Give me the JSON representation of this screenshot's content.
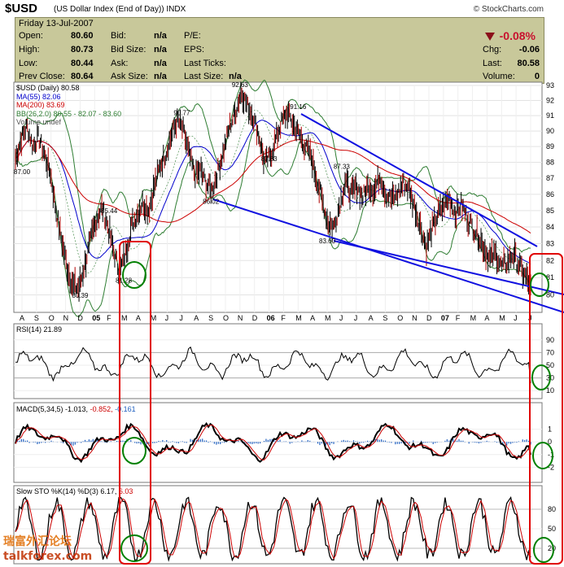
{
  "header": {
    "symbol": "$USD",
    "description": "(US Dollar Index (End of Day))",
    "exchange": "INDX",
    "brand": "© StockCharts.com"
  },
  "quote": {
    "date": "Friday  13-Jul-2007",
    "open_label": "Open:",
    "open": "80.60",
    "high_label": "High:",
    "high": "80.73",
    "low_label": "Low:",
    "low": "80.44",
    "prev_label": "Prev Close:",
    "prev": "80.64",
    "bid_label": "Bid:",
    "bid": "n/a",
    "bidsize_label": "Bid Size:",
    "bidsize": "n/a",
    "ask_label": "Ask:",
    "ask": "n/a",
    "asksize_label": "Ask Size:",
    "asksize": "n/a",
    "pe_label": "P/E:",
    "eps_label": "EPS:",
    "lastticks_label": "Last Ticks:",
    "lastsize_label": "Last Size:",
    "lastsize": "n/a",
    "change_pct": "-0.08%",
    "chg_label": "Chg:",
    "chg": "-0.06",
    "last_label": "Last:",
    "last": "80.58",
    "volume_label": "Volume:",
    "volume": "0"
  },
  "colors": {
    "panel_bg": "#ffffff",
    "quote_bg": "#c8c89a",
    "price": "#000000",
    "ma55": "#0000cc",
    "ma200": "#cc0000",
    "bb": "#2e7d32",
    "trendline": "#1010e0",
    "rsi_fill": "#8b5a5a",
    "macd_hist": "#2060c0",
    "macd_line": "#000000",
    "signal_line": "#cc0000",
    "highlight_rect": "#e00000",
    "highlight_circle": "#008000"
  },
  "chart_data": [
    {
      "type": "line",
      "title": "$USD (Daily) 80.58",
      "legend": [
        {
          "name": "MA(55) 82.06",
          "color": "#0000cc"
        },
        {
          "name": "MA(200) 83.69",
          "color": "#cc0000"
        },
        {
          "name": "BB(26,2.0) 80.55 - 82.07 - 83.60",
          "color": "#2e7d32"
        },
        {
          "name": "Volume undef",
          "color": "#666666"
        }
      ],
      "legend_position": "top-left",
      "x_ticks": [
        "A",
        "S",
        "O",
        "N",
        "D",
        "05",
        "F",
        "M",
        "A",
        "M",
        "J",
        "J",
        "A",
        "S",
        "O",
        "N",
        "D",
        "06",
        "F",
        "M",
        "A",
        "M",
        "J",
        "J",
        "A",
        "S",
        "O",
        "N",
        "D",
        "07",
        "F",
        "M",
        "A",
        "M",
        "J",
        "J"
      ],
      "ylim": [
        79,
        93
      ],
      "y_ticks": [
        80,
        81,
        82,
        83,
        84,
        85,
        86,
        87,
        88,
        89,
        90,
        91,
        92,
        93
      ],
      "scale": "log",
      "annotations": [
        {
          "label": "87.00",
          "x": "Aug-04",
          "y": 87.0
        },
        {
          "label": "80.39",
          "x": "Dec-04",
          "y": 80.39
        },
        {
          "label": "85.44",
          "x": "Feb-05",
          "y": 85.44
        },
        {
          "label": "81.28",
          "x": "Mar-05",
          "y": 81.28
        },
        {
          "label": "90.77",
          "x": "Jul-05",
          "y": 90.77
        },
        {
          "label": "86.02",
          "x": "Sep-05",
          "y": 86.02
        },
        {
          "label": "92.63",
          "x": "Nov-05",
          "y": 92.63
        },
        {
          "label": "87.83",
          "x": "Jan-06",
          "y": 87.83
        },
        {
          "label": "91.16",
          "x": "Mar-06",
          "y": 91.16
        },
        {
          "label": "83.60",
          "x": "May-06",
          "y": 83.6
        },
        {
          "label": "87.33",
          "x": "Jun-06",
          "y": 87.33
        }
      ],
      "last": 80.58,
      "price_path": [
        88.2,
        89.5,
        90.3,
        89.0,
        89.6,
        88.5,
        87.4,
        85.0,
        83.2,
        81.5,
        80.5,
        80.4,
        81.8,
        83.2,
        84.5,
        85.2,
        84.0,
        82.5,
        81.3,
        82.4,
        84.0,
        84.8,
        85.5,
        85.0,
        86.5,
        87.8,
        88.6,
        89.8,
        90.7,
        90.0,
        88.5,
        87.2,
        87.5,
        86.6,
        86.3,
        87.5,
        88.8,
        90.3,
        91.2,
        92.6,
        91.7,
        91.0,
        89.8,
        88.0,
        88.3,
        89.5,
        90.6,
        91.2,
        90.4,
        89.8,
        89.0,
        88.5,
        87.0,
        85.6,
        84.3,
        84.0,
        85.4,
        86.8,
        86.0,
        86.5,
        85.8,
        86.6,
        86.2,
        87.2,
        86.0,
        85.7,
        86.0,
        86.7,
        86.3,
        85.2,
        84.0,
        82.8,
        83.9,
        84.8,
        85.3,
        85.8,
        84.8,
        85.4,
        84.6,
        84.0,
        83.5,
        82.7,
        82.1,
        82.4,
        81.6,
        81.9,
        82.4,
        81.7,
        81.1,
        80.6
      ]
    },
    {
      "type": "line",
      "title": "RSI(14) 21.89",
      "ylim": [
        0,
        100
      ],
      "y_ticks": [
        10,
        30,
        50,
        70,
        90
      ],
      "last": 21.89
    },
    {
      "type": "line",
      "title": "MACD(5,34,5) -1.013, -0.852, -0.161",
      "series": [
        {
          "name": "MACD",
          "last": -1.013
        },
        {
          "name": "Signal",
          "last": -0.852
        },
        {
          "name": "Histogram",
          "last": -0.161
        }
      ],
      "ylim": [
        -3,
        2
      ],
      "y_ticks": [
        1,
        0,
        -1,
        -2
      ]
    },
    {
      "type": "line",
      "title": "Slow STO %K(14) %D(3) 6.17, 6.03",
      "series": [
        {
          "name": "%K(14)",
          "last": 6.17
        },
        {
          "name": "%D(3)",
          "last": 6.03
        }
      ],
      "ylim": [
        0,
        100
      ],
      "y_ticks": [
        20,
        50,
        80
      ]
    }
  ],
  "labels": {
    "main_title": "$USD (Daily)",
    "main_last": "80.58",
    "ma55": "MA(55) 82.06",
    "ma200": "MA(200) 83.69",
    "bb": "BB(26,2.0) 80.55 - 82.07 - 83.60",
    "volume": "Volume undef",
    "rsi": "RSI(14) 21.89",
    "macd_name": "MACD(5,34,5)",
    "macd_v1": "-1.013,",
    "macd_v2": "-0.852,",
    "macd_v3": "-0.161",
    "sto_name": "Slow STO %K(14) %D(3)",
    "sto_v1": "6.17,",
    "sto_v2": "6.03"
  },
  "watermark": {
    "line1": "瑞富外汇论坛",
    "line2": "talkforex.com"
  }
}
